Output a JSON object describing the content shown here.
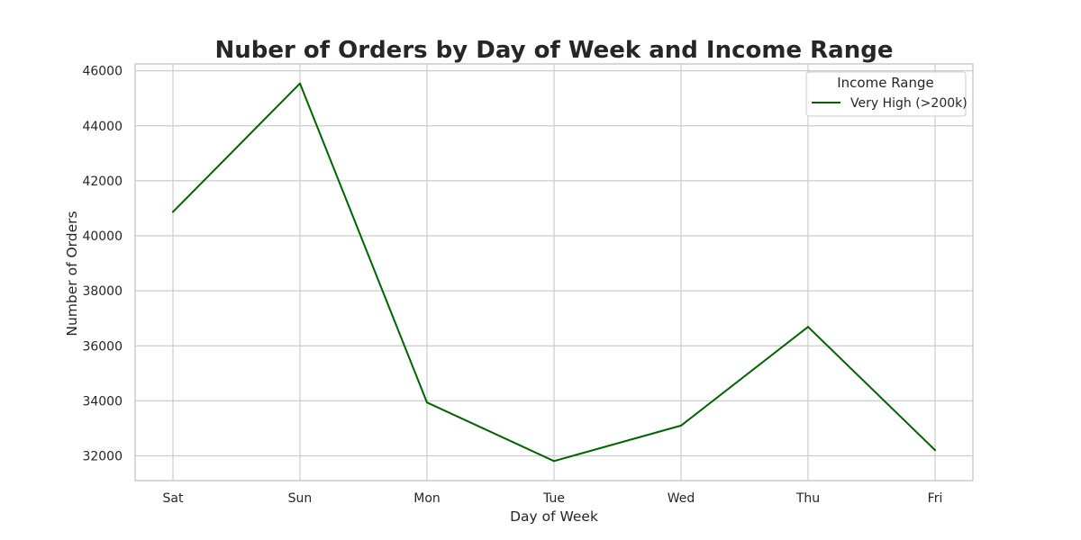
{
  "chart_data": {
    "type": "line",
    "title": "Nuber of Orders by Day of Week and Income Range",
    "xlabel": "Day of Week",
    "ylabel": "Number of Orders",
    "categories": [
      "Sat",
      "Sun",
      "Mon",
      "Tue",
      "Wed",
      "Thu",
      "Fri"
    ],
    "ylim": [
      31100,
      46250
    ],
    "yticks": [
      32000,
      34000,
      36000,
      38000,
      40000,
      42000,
      44000,
      46000
    ],
    "grid": true,
    "legend": {
      "title": "Income Range",
      "placement": "top-right"
    },
    "series": [
      {
        "name": "Very High (>200k)",
        "color": "#006400",
        "values": [
          40870,
          45540,
          33940,
          31810,
          33100,
          36690,
          32210
        ]
      }
    ]
  }
}
